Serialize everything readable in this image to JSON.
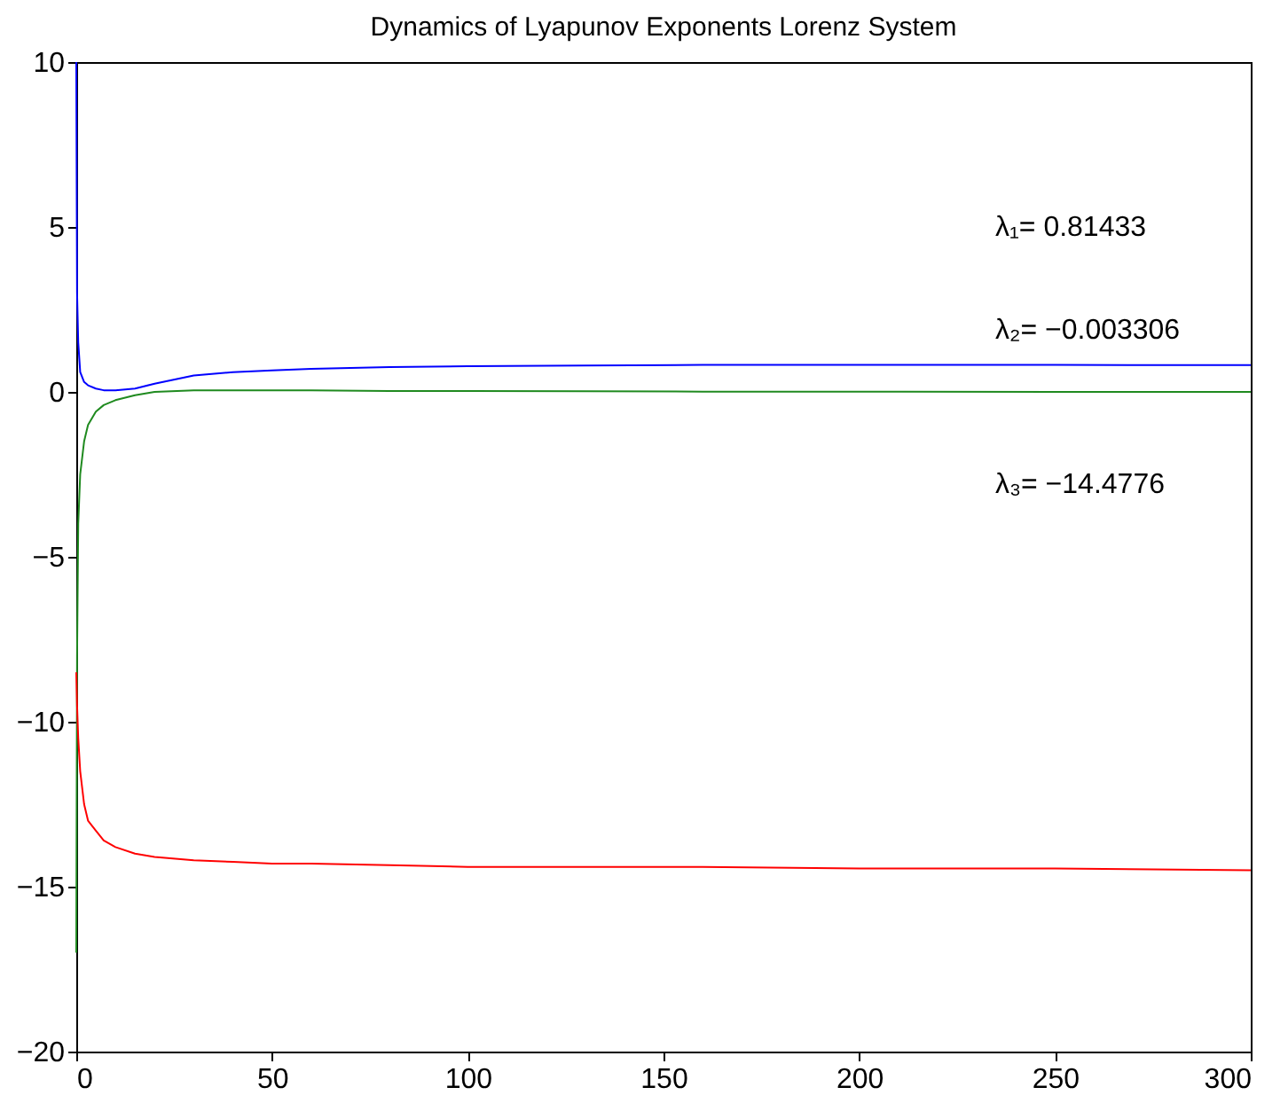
{
  "chart_data": {
    "type": "line",
    "title": "Dynamics of Lyapunov Exponents Lorenz System",
    "x": [
      0,
      0.2,
      0.5,
      1,
      2,
      3,
      5,
      7,
      10,
      15,
      20,
      30,
      40,
      50,
      60,
      80,
      100,
      130,
      160,
      200,
      250,
      300
    ],
    "series": [
      {
        "color": "#0000ff",
        "values": [
          10,
          3,
          1.5,
          0.6,
          0.3,
          0.2,
          0.1,
          0.05,
          0.05,
          0.1,
          0.25,
          0.5,
          0.6,
          0.65,
          0.7,
          0.75,
          0.78,
          0.8,
          0.82,
          0.82,
          0.82,
          0.81
        ]
      },
      {
        "color": "#1f8a1f",
        "values": [
          -17,
          -8,
          -4,
          -2.5,
          -1.5,
          -1,
          -0.6,
          -0.4,
          -0.25,
          -0.1,
          0,
          0.05,
          0.05,
          0.05,
          0.05,
          0.03,
          0.03,
          0.02,
          0.01,
          0.01,
          0,
          0
        ]
      },
      {
        "color": "#ff0000",
        "values": [
          -8.5,
          -9.5,
          -10.5,
          -11.5,
          -12.5,
          -13,
          -13.3,
          -13.6,
          -13.8,
          -14,
          -14.1,
          -14.2,
          -14.25,
          -14.3,
          -14.3,
          -14.35,
          -14.4,
          -14.4,
          -14.4,
          -14.45,
          -14.45,
          -14.5
        ]
      }
    ],
    "xlim": [
      0,
      300
    ],
    "xticks": [
      0,
      50,
      100,
      150,
      200,
      250,
      300
    ],
    "ylim": [
      -20,
      10
    ],
    "yticks": [
      -20,
      -15,
      -10,
      -5,
      0,
      5,
      10
    ],
    "grid": false,
    "legend": false,
    "marker": "none",
    "line_style": "solid",
    "annotations": [
      "λ₁= 0.81433",
      "λ₂= −0.003306",
      "λ₃= −14.4776"
    ]
  }
}
